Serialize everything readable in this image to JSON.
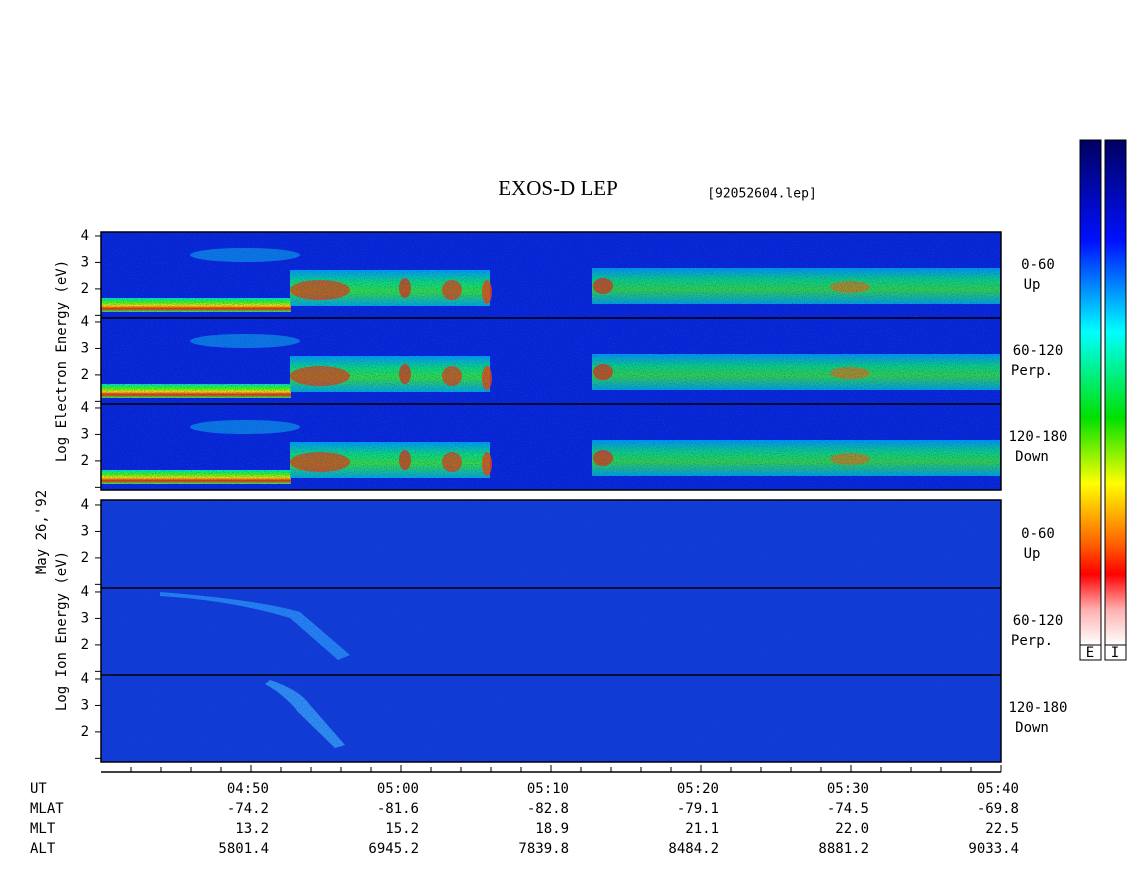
{
  "title": "EXOS-D LEP",
  "file": "[92052604.lep]",
  "date": "May 26,'92",
  "species": [
    {
      "label": "Log Electron Energy (eV)",
      "panels": [
        {
          "angle": "0-60",
          "direction": "Up"
        },
        {
          "angle": "60-120",
          "direction": "Perp."
        },
        {
          "angle": "120-180",
          "direction": "Down"
        }
      ]
    },
    {
      "label": "Log Ion Energy (eV)",
      "panels": [
        {
          "angle": "0-60",
          "direction": "Up"
        },
        {
          "angle": "60-120",
          "direction": "Perp."
        },
        {
          "angle": "120-180",
          "direction": "Down"
        }
      ]
    }
  ],
  "energy_axis": {
    "ylim": [
      0.9,
      4.15
    ],
    "yticks": [
      2,
      3,
      4
    ],
    "minor_yticks": [
      1
    ]
  },
  "time_axis": {
    "xlim": [
      280,
      340
    ],
    "xticks": [
      {
        "value": 290,
        "label": "04:50"
      },
      {
        "value": 300,
        "label": "05:00"
      },
      {
        "value": 310,
        "label": "05:10"
      },
      {
        "value": 320,
        "label": "05:20"
      },
      {
        "value": 330,
        "label": "05:30"
      },
      {
        "value": 340,
        "label": "05:40"
      }
    ],
    "minor_xticks": [
      282,
      284,
      286,
      288,
      292,
      294,
      296,
      298,
      302,
      304,
      306,
      308,
      312,
      314,
      316,
      318,
      322,
      324,
      326,
      328,
      332,
      334,
      336,
      338
    ]
  },
  "ephemeris": {
    "header": "UT",
    "rows": [
      {
        "label": "MLAT",
        "values": [
          "-74.2",
          "-81.6",
          "-82.8",
          "-79.1",
          "-74.5",
          "-69.8"
        ]
      },
      {
        "label": "MLT",
        "values": [
          "13.2",
          "15.2",
          "18.9",
          "21.1",
          "22.0",
          "22.5"
        ]
      },
      {
        "label": "ALT",
        "values": [
          "5801.4",
          "6945.2",
          "7839.8",
          "8484.2",
          "8881.2",
          "9033.4"
        ]
      }
    ]
  },
  "colorbar": {
    "labels": [
      "E",
      "I"
    ]
  }
}
